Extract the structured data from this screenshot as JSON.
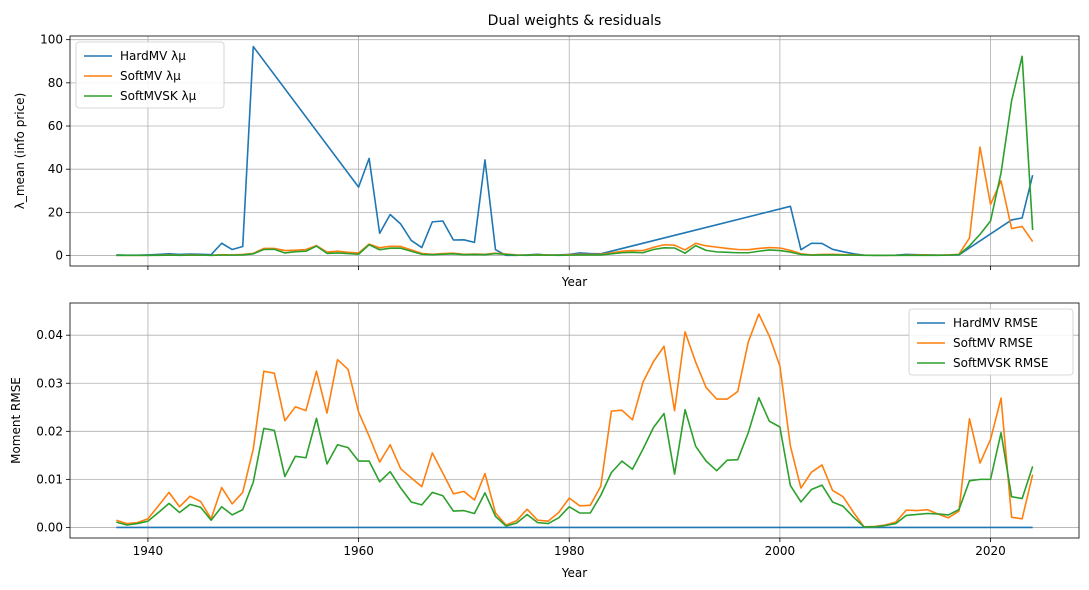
{
  "chart_data": [
    {
      "type": "line",
      "title": "Dual weights & residuals",
      "xlabel": "Year",
      "ylabel": "λ_mean (info price)",
      "xlim": [
        1932.6,
        2028.4
      ],
      "ylim": [
        -4.84,
        101.7
      ],
      "xticks": [
        1940,
        1960,
        1980,
        2000,
        2020
      ],
      "xtick_labels_shown": false,
      "yticks": [
        0,
        20,
        40,
        60,
        80,
        100
      ],
      "ytick_labels": [
        "0",
        "20",
        "40",
        "60",
        "80",
        "100"
      ],
      "grid": true,
      "legend_loc": "upper-left",
      "series": [
        {
          "name": "HardMV λμ",
          "color": "#1f77b4",
          "x": [
            1937,
            1938,
            1939,
            1940,
            1941,
            1942,
            1943,
            1944,
            1945,
            1946,
            1947,
            1948,
            1949,
            1950,
            1960,
            1961,
            1962,
            1963,
            1964,
            1965,
            1966,
            1967,
            1968,
            1969,
            1970,
            1971,
            1972,
            1973,
            1974,
            1975,
            1976,
            1977,
            1978,
            1979,
            1980,
            1981,
            1982,
            1983,
            2001,
            2002,
            2003,
            2004,
            2005,
            2006,
            2007,
            2008,
            2009,
            2010,
            2011,
            2012,
            2013,
            2014,
            2015,
            2016,
            2017,
            2022,
            2023,
            2024
          ],
          "y": [
            0.3,
            0.2,
            0.2,
            0.3,
            0.5,
            0.8,
            0.5,
            0.7,
            0.6,
            0.4,
            5.7,
            2.8,
            4.2,
            96.8,
            31.7,
            45.0,
            10.3,
            19.0,
            14.6,
            7.0,
            3.7,
            15.6,
            16.0,
            7.2,
            7.3,
            6.1,
            44.3,
            2.7,
            0.1,
            0.1,
            0.3,
            0.6,
            0.2,
            0.3,
            0.5,
            1.2,
            0.9,
            0.8,
            22.8,
            2.7,
            5.7,
            5.6,
            2.9,
            1.8,
            0.8,
            0.2,
            0.1,
            0.1,
            0.2,
            0.5,
            0.4,
            0.3,
            0.2,
            0.2,
            0.3,
            16.5,
            17.4,
            37.2
          ]
        },
        {
          "name": "SoftMV λμ",
          "color": "#ff7f0e",
          "x": [
            1937,
            1938,
            1939,
            1940,
            1941,
            1942,
            1943,
            1944,
            1945,
            1946,
            1947,
            1948,
            1949,
            1950,
            1951,
            1952,
            1953,
            1954,
            1955,
            1956,
            1957,
            1958,
            1959,
            1960,
            1961,
            1962,
            1963,
            1964,
            1965,
            1966,
            1967,
            1968,
            1969,
            1970,
            1971,
            1972,
            1973,
            1974,
            1975,
            1976,
            1977,
            1978,
            1979,
            1980,
            1981,
            1982,
            1983,
            1984,
            1985,
            1986,
            1987,
            1988,
            1989,
            1990,
            1991,
            1992,
            1993,
            1994,
            1995,
            1996,
            1997,
            1998,
            1999,
            2000,
            2001,
            2002,
            2003,
            2004,
            2005,
            2006,
            2007,
            2008,
            2009,
            2010,
            2011,
            2012,
            2013,
            2014,
            2015,
            2016,
            2017,
            2018,
            2019,
            2020,
            2021,
            2022,
            2023,
            2024
          ],
          "y": [
            0.1,
            0.1,
            0.1,
            0.1,
            0.2,
            0.3,
            0.2,
            0.3,
            0.2,
            0.1,
            0.4,
            0.3,
            0.5,
            1.0,
            3.3,
            3.3,
            2.3,
            2.5,
            2.8,
            4.6,
            1.6,
            2.0,
            1.5,
            1.2,
            5.3,
            3.6,
            4.3,
            4.2,
            2.6,
            1.0,
            0.6,
            0.9,
            1.1,
            0.6,
            0.7,
            0.6,
            1.1,
            0.7,
            0.3,
            0.2,
            0.4,
            0.3,
            0.2,
            0.4,
            0.5,
            0.5,
            0.6,
            1.2,
            2.0,
            2.3,
            2.3,
            3.8,
            5.0,
            4.8,
            2.6,
            5.7,
            4.5,
            3.9,
            3.3,
            2.8,
            2.7,
            3.3,
            3.7,
            3.5,
            2.4,
            0.8,
            0.3,
            0.5,
            0.6,
            0.4,
            0.3,
            0.2,
            0.1,
            0.1,
            0.1,
            0.2,
            0.3,
            0.3,
            0.2,
            0.3,
            0.6,
            8.1,
            50.2,
            23.7,
            34.6,
            12.5,
            13.5,
            6.5
          ]
        },
        {
          "name": "SoftMVSK λμ",
          "color": "#2ca02c",
          "x": [
            1937,
            1938,
            1939,
            1940,
            1941,
            1942,
            1943,
            1944,
            1945,
            1946,
            1947,
            1948,
            1949,
            1950,
            1951,
            1952,
            1953,
            1954,
            1955,
            1956,
            1957,
            1958,
            1959,
            1960,
            1961,
            1962,
            1963,
            1964,
            1965,
            1966,
            1967,
            1968,
            1969,
            1970,
            1971,
            1972,
            1973,
            1974,
            1975,
            1976,
            1977,
            1978,
            1979,
            1980,
            1981,
            1982,
            1983,
            1984,
            1985,
            1986,
            1987,
            1988,
            1989,
            1990,
            1991,
            1992,
            1993,
            1994,
            1995,
            1996,
            1997,
            1998,
            1999,
            2000,
            2001,
            2002,
            2003,
            2004,
            2005,
            2006,
            2007,
            2008,
            2009,
            2010,
            2011,
            2012,
            2013,
            2014,
            2015,
            2016,
            2017,
            2018,
            2019,
            2020,
            2021,
            2022,
            2023,
            2024
          ],
          "y": [
            0.1,
            0.1,
            0.1,
            0.1,
            0.1,
            0.2,
            0.1,
            0.2,
            0.2,
            0.1,
            0.2,
            0.2,
            0.3,
            0.8,
            2.8,
            2.9,
            1.2,
            1.8,
            2.0,
            4.4,
            1.0,
            1.2,
            0.9,
            0.6,
            5.0,
            2.7,
            3.4,
            3.4,
            2.0,
            0.6,
            0.4,
            0.6,
            0.8,
            0.4,
            0.5,
            0.4,
            0.9,
            0.5,
            0.2,
            0.1,
            0.3,
            0.2,
            0.1,
            0.2,
            0.3,
            0.3,
            0.3,
            0.8,
            1.3,
            1.5,
            1.3,
            2.8,
            3.6,
            3.5,
            1.1,
            4.6,
            2.4,
            1.7,
            1.5,
            1.3,
            1.3,
            2.0,
            2.6,
            2.3,
            1.6,
            0.5,
            0.2,
            0.3,
            0.3,
            0.2,
            0.2,
            0.1,
            0.1,
            0.1,
            0.1,
            0.1,
            0.1,
            0.1,
            0.1,
            0.2,
            0.4,
            4.5,
            9.8,
            16.0,
            38.4,
            71.6,
            92.3,
            11.8
          ]
        }
      ]
    },
    {
      "type": "line",
      "title": "",
      "xlabel": "Year",
      "ylabel": "Moment RMSE",
      "xlim": [
        1932.6,
        2028.4
      ],
      "ylim": [
        -0.0022,
        0.0467
      ],
      "xticks": [
        1940,
        1960,
        1980,
        2000,
        2020
      ],
      "xtick_labels": [
        "1940",
        "1960",
        "1980",
        "2000",
        "2020"
      ],
      "yticks": [
        0,
        0.01,
        0.02,
        0.03,
        0.04
      ],
      "ytick_labels": [
        "0.00",
        "0.01",
        "0.02",
        "0.03",
        "0.04"
      ],
      "grid": true,
      "legend_loc": "upper-right",
      "series": [
        {
          "name": "HardMV RMSE",
          "color": "#1f77b4",
          "x": [
            1937,
            2024
          ],
          "y": [
            0.0,
            0.0
          ]
        },
        {
          "name": "SoftMV RMSE",
          "color": "#ff7f0e",
          "x": [
            1937,
            1938,
            1939,
            1940,
            1941,
            1942,
            1943,
            1944,
            1945,
            1946,
            1947,
            1948,
            1949,
            1950,
            1951,
            1952,
            1953,
            1954,
            1955,
            1956,
            1957,
            1958,
            1959,
            1960,
            1961,
            1962,
            1963,
            1964,
            1965,
            1966,
            1967,
            1968,
            1969,
            1970,
            1971,
            1972,
            1973,
            1974,
            1975,
            1976,
            1977,
            1978,
            1979,
            1980,
            1981,
            1982,
            1983,
            1984,
            1985,
            1986,
            1987,
            1988,
            1989,
            1990,
            1991,
            1992,
            1993,
            1994,
            1995,
            1996,
            1997,
            1998,
            1999,
            2000,
            2001,
            2002,
            2003,
            2004,
            2005,
            2006,
            2007,
            2008,
            2009,
            2010,
            2011,
            2012,
            2013,
            2014,
            2015,
            2016,
            2017,
            2018,
            2019,
            2020,
            2021,
            2022,
            2023,
            2024
          ],
          "y": [
            0.0015,
            0.0008,
            0.001,
            0.0018,
            0.0045,
            0.0073,
            0.0043,
            0.0065,
            0.0054,
            0.0018,
            0.0083,
            0.0049,
            0.0073,
            0.0163,
            0.0325,
            0.0321,
            0.0222,
            0.0251,
            0.0243,
            0.0325,
            0.0238,
            0.0349,
            0.0329,
            0.024,
            0.019,
            0.0136,
            0.0172,
            0.0122,
            0.0103,
            0.0085,
            0.0155,
            0.0113,
            0.007,
            0.0075,
            0.0057,
            0.0112,
            0.003,
            0.0005,
            0.0014,
            0.0038,
            0.0015,
            0.0013,
            0.0031,
            0.0061,
            0.0045,
            0.0046,
            0.0086,
            0.0242,
            0.0244,
            0.0224,
            0.0302,
            0.0345,
            0.0377,
            0.0243,
            0.0407,
            0.0344,
            0.0291,
            0.0267,
            0.0267,
            0.0283,
            0.0386,
            0.0444,
            0.0398,
            0.0336,
            0.0169,
            0.0082,
            0.0115,
            0.013,
            0.0077,
            0.0064,
            0.0031,
            0.0001,
            0.0002,
            0.0005,
            0.0011,
            0.0036,
            0.0035,
            0.0037,
            0.0028,
            0.002,
            0.0034,
            0.0226,
            0.0134,
            0.0183,
            0.0269,
            0.0021,
            0.0018,
            0.011
          ]
        },
        {
          "name": "SoftMVSK RMSE",
          "color": "#2ca02c",
          "x": [
            1937,
            1938,
            1939,
            1940,
            1941,
            1942,
            1943,
            1944,
            1945,
            1946,
            1947,
            1948,
            1949,
            1950,
            1951,
            1952,
            1953,
            1954,
            1955,
            1956,
            1957,
            1958,
            1959,
            1960,
            1961,
            1962,
            1963,
            1964,
            1965,
            1966,
            1967,
            1968,
            1969,
            1970,
            1971,
            1972,
            1973,
            1974,
            1975,
            1976,
            1977,
            1978,
            1979,
            1980,
            1981,
            1982,
            1983,
            1984,
            1985,
            1986,
            1987,
            1988,
            1989,
            1990,
            1991,
            1992,
            1993,
            1994,
            1995,
            1996,
            1997,
            1998,
            1999,
            2000,
            2001,
            2002,
            2003,
            2004,
            2005,
            2006,
            2007,
            2008,
            2009,
            2010,
            2011,
            2012,
            2013,
            2014,
            2015,
            2016,
            2017,
            2018,
            2019,
            2020,
            2021,
            2022,
            2023,
            2024
          ],
          "y": [
            0.0011,
            0.0005,
            0.0008,
            0.0013,
            0.0031,
            0.005,
            0.0031,
            0.0048,
            0.0042,
            0.0015,
            0.0043,
            0.0026,
            0.0037,
            0.0094,
            0.0206,
            0.0202,
            0.0106,
            0.0148,
            0.0145,
            0.0227,
            0.0132,
            0.0172,
            0.0166,
            0.0138,
            0.0138,
            0.0095,
            0.0116,
            0.0082,
            0.0053,
            0.0047,
            0.0073,
            0.0066,
            0.0034,
            0.0035,
            0.0029,
            0.0072,
            0.0023,
            0.0003,
            0.0009,
            0.0027,
            0.001,
            0.0008,
            0.002,
            0.0043,
            0.003,
            0.003,
            0.0067,
            0.0114,
            0.0138,
            0.0121,
            0.0163,
            0.0208,
            0.0237,
            0.0111,
            0.0245,
            0.0169,
            0.0138,
            0.0118,
            0.014,
            0.0141,
            0.0197,
            0.027,
            0.0221,
            0.0209,
            0.0087,
            0.0053,
            0.0079,
            0.0088,
            0.0053,
            0.0044,
            0.0021,
            0.0001,
            0.0001,
            0.0004,
            0.0008,
            0.0025,
            0.0027,
            0.0029,
            0.0028,
            0.0026,
            0.0037,
            0.0097,
            0.01,
            0.01,
            0.0197,
            0.0064,
            0.006,
            0.0127
          ]
        }
      ]
    }
  ]
}
